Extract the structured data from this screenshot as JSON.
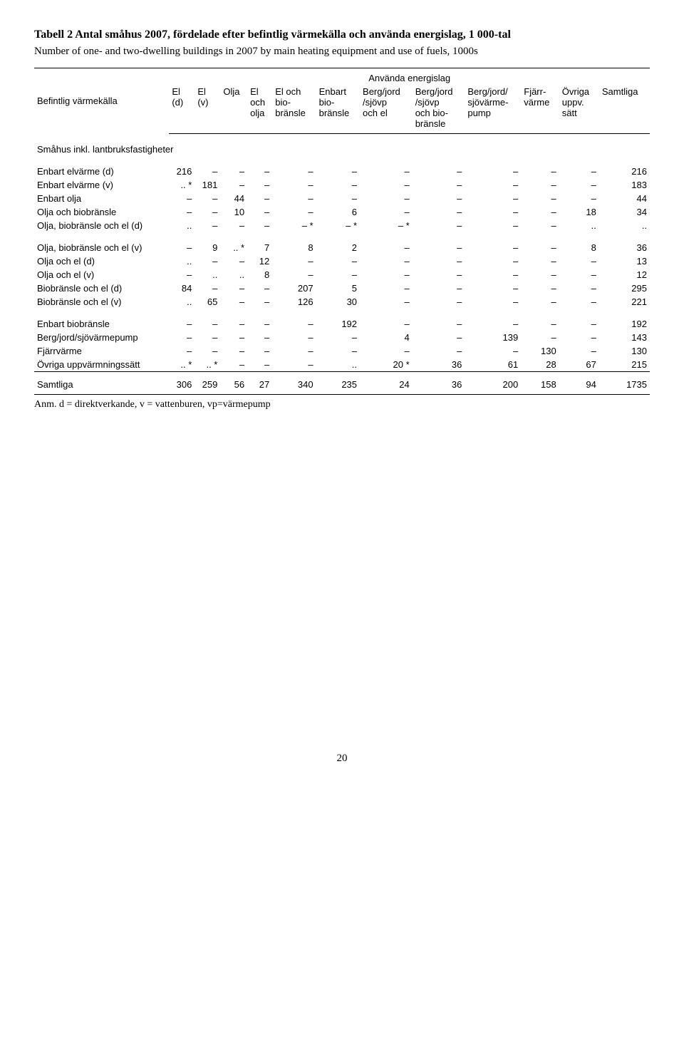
{
  "title": "Tabell 2 Antal småhus 2007, fördelade efter befintlig värmekälla och använda energislag, 1 000-tal",
  "subtitle": "Number of one- and two-dwelling buildings in 2007 by main heating equipment and use of fuels, 1000s",
  "header": {
    "rowhead": "Befintlig värmekälla",
    "group": "Använda energislag",
    "cols": [
      "El\n(d)",
      "El\n(v)",
      "Olja",
      "El\noch\nolja",
      "El och\nbio-\nbränsle",
      "Enbart\nbio-\nbränsle",
      "Berg/jord\n/sjövp\noch el",
      "Berg/jord\n/sjövp\noch bio-\nbränsle",
      "Berg/jord/\nsjövärme-\npump",
      "Fjärr-\nvärme",
      "Övriga\nuppv.\nsätt",
      "Samtliga"
    ]
  },
  "section_label": "Småhus inkl. lantbruksfastigheter",
  "blocks": [
    [
      {
        "label": "Enbart elvärme (d)",
        "cells": [
          "216",
          "–",
          "–",
          "–",
          "–",
          "–",
          "–",
          "–",
          "–",
          "–",
          "–",
          "216"
        ]
      },
      {
        "label": "Enbart elvärme (v)",
        "cells": [
          ".. *",
          "181",
          "–",
          "–",
          "–",
          "–",
          "–",
          "–",
          "–",
          "–",
          "–",
          "183"
        ]
      },
      {
        "label": "Enbart olja",
        "cells": [
          "–",
          "–",
          "44",
          "–",
          "–",
          "–",
          "–",
          "–",
          "–",
          "–",
          "–",
          "44"
        ]
      },
      {
        "label": "Olja och biobränsle",
        "cells": [
          "–",
          "–",
          "10",
          "–",
          "–",
          "6",
          "–",
          "–",
          "–",
          "–",
          "18",
          "34"
        ]
      },
      {
        "label": "Olja, biobränsle och el (d)",
        "cells": [
          "..",
          "–",
          "–",
          "–",
          "– *",
          "– *",
          "– *",
          "–",
          "–",
          "–",
          "..",
          ".."
        ]
      }
    ],
    [
      {
        "label": "Olja, biobränsle och el (v)",
        "cells": [
          "–",
          "9",
          ".. *",
          "7",
          "8",
          "2",
          "–",
          "–",
          "–",
          "–",
          "8",
          "36"
        ]
      },
      {
        "label": "Olja och el (d)",
        "cells": [
          "..",
          "–",
          "–",
          "12",
          "–",
          "–",
          "–",
          "–",
          "–",
          "–",
          "–",
          "13"
        ]
      },
      {
        "label": "Olja och el (v)",
        "cells": [
          "–",
          "..",
          "..",
          "8",
          "–",
          "–",
          "–",
          "–",
          "–",
          "–",
          "–",
          "12"
        ]
      },
      {
        "label": "Biobränsle och el (d)",
        "cells": [
          "84",
          "–",
          "–",
          "–",
          "207",
          "5",
          "–",
          "–",
          "–",
          "–",
          "–",
          "295"
        ]
      },
      {
        "label": "Biobränsle och el (v)",
        "cells": [
          "..",
          "65",
          "–",
          "–",
          "126",
          "30",
          "–",
          "–",
          "–",
          "–",
          "–",
          "221"
        ]
      }
    ],
    [
      {
        "label": "Enbart biobränsle",
        "cells": [
          "–",
          "–",
          "–",
          "–",
          "–",
          "192",
          "–",
          "–",
          "–",
          "–",
          "–",
          "192"
        ]
      },
      {
        "label": "Berg/jord/sjövärmepump",
        "cells": [
          "–",
          "–",
          "–",
          "–",
          "–",
          "–",
          "4",
          "–",
          "139",
          "–",
          "–",
          "143"
        ]
      },
      {
        "label": "Fjärrvärme",
        "cells": [
          "–",
          "–",
          "–",
          "–",
          "–",
          "–",
          "–",
          "–",
          "–",
          "130",
          "–",
          "130"
        ]
      },
      {
        "label": "Övriga uppvärmningssätt",
        "cells": [
          ".. *",
          ".. *",
          "–",
          "–",
          "–",
          "..",
          "20 *",
          "36",
          "61",
          "28",
          "67",
          "215"
        ]
      }
    ]
  ],
  "total": {
    "label": "Samtliga",
    "cells": [
      "306",
      "259",
      "56",
      "27",
      "340",
      "235",
      "24",
      "36",
      "200",
      "158",
      "94",
      "1735"
    ]
  },
  "footnote": "Anm. d = direktverkande, v = vattenburen, vp=värmepump",
  "page_number": "20"
}
